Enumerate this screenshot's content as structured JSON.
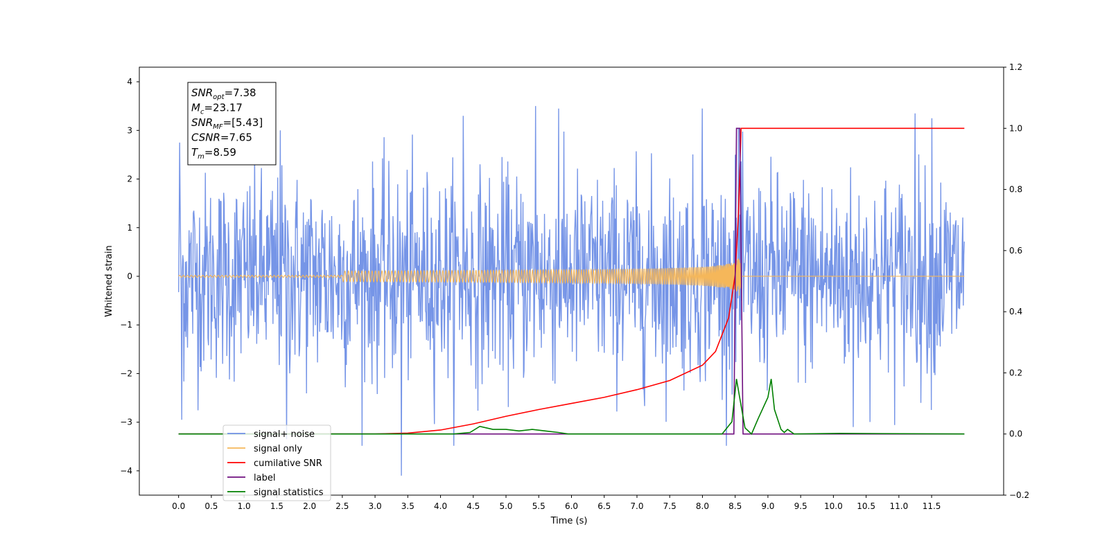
{
  "chart_data": {
    "type": "line",
    "xlabel": "Time (s)",
    "ylabel": "Whitened strain",
    "xlim": [
      -0.6,
      12.6
    ],
    "ylim": [
      -4.5,
      4.3
    ],
    "y2lim": [
      -0.2,
      1.2
    ],
    "x_ticks": [
      0.0,
      0.5,
      1.0,
      1.5,
      2.0,
      2.5,
      3.0,
      3.5,
      4.0,
      4.5,
      5.0,
      5.5,
      6.0,
      6.5,
      7.0,
      7.5,
      8.0,
      8.5,
      9.0,
      9.5,
      10.0,
      10.5,
      11.0,
      11.5
    ],
    "x_tick_labels": [
      "0.0",
      "0.5",
      "1.0",
      "1.5",
      "2.0",
      "2.5",
      "3.0",
      "3.5",
      "4.0",
      "4.5",
      "5.0",
      "5.5",
      "6.0",
      "6.5",
      "7.0",
      "7.5",
      "8.0",
      "8.5",
      "9.0",
      "9.5",
      "10.0",
      "10.5",
      "11.0",
      "11.5"
    ],
    "y_ticks": [
      -4,
      -3,
      -2,
      -1,
      0,
      1,
      2,
      3,
      4
    ],
    "y_tick_labels": [
      "−4",
      "−3",
      "−2",
      "−1",
      "0",
      "1",
      "2",
      "3",
      "4"
    ],
    "y2_ticks": [
      -0.2,
      0.0,
      0.2,
      0.4,
      0.6,
      0.8,
      1.0,
      1.2
    ],
    "y2_tick_labels": [
      "−0.2",
      "0.0",
      "0.2",
      "0.4",
      "0.6",
      "0.8",
      "1.0",
      "1.2"
    ],
    "grid": false,
    "legend_position": "bottom-left",
    "annotation": {
      "lines": [
        {
          "sym": "SNR",
          "sub": "opt",
          "val": "=7.38"
        },
        {
          "sym": "M",
          "sub": "c",
          "val": "=23.17"
        },
        {
          "sym": "SNR",
          "sub": "MF",
          "val": "=[5.43]"
        },
        {
          "sym": "CSNR",
          "sub": "",
          "val": "=7.65"
        },
        {
          "sym": "T",
          "sub": "m",
          "val": "=8.59"
        }
      ]
    },
    "series": [
      {
        "name": "signal+ noise",
        "axis": "left",
        "color": "#6f8fe6",
        "kind": "noise",
        "t_start": 0.0,
        "t_end": 12.0,
        "samples": 1500,
        "envelope_std": 1.05,
        "peak_max": 3.5,
        "peak_min": -4.1,
        "notable_spikes": [
          [
            0.02,
            2.75
          ],
          [
            0.05,
            -2.95
          ],
          [
            1.55,
            3.0
          ],
          [
            1.65,
            -3.35
          ],
          [
            3.4,
            -4.1
          ],
          [
            4.35,
            3.3
          ],
          [
            5.45,
            3.5
          ],
          [
            5.8,
            3.45
          ],
          [
            8.0,
            3.45
          ],
          [
            8.55,
            3.05
          ],
          [
            10.3,
            -3.1
          ],
          [
            11.25,
            3.35
          ],
          [
            11.5,
            3.25
          ]
        ]
      },
      {
        "name": "signal only",
        "axis": "left",
        "color": "#f5b75a",
        "kind": "chirp",
        "t_start": 0.0,
        "t_end": 12.0,
        "merger_time": 8.59,
        "amplitude_at_merger": 0.55
      },
      {
        "name": "cumilative SNR",
        "axis": "right",
        "color": "#ff0000",
        "x": [
          0.0,
          2.5,
          3.0,
          3.5,
          4.0,
          4.5,
          5.0,
          5.5,
          6.0,
          6.5,
          7.0,
          7.5,
          8.0,
          8.2,
          8.4,
          8.5,
          8.55,
          8.59,
          8.6,
          12.0
        ],
        "y": [
          0.0,
          0.0,
          0.0,
          0.003,
          0.013,
          0.033,
          0.058,
          0.08,
          0.1,
          0.12,
          0.145,
          0.175,
          0.225,
          0.27,
          0.38,
          0.52,
          0.72,
          1.0,
          1.0,
          1.0
        ]
      },
      {
        "name": "label",
        "axis": "right",
        "color": "#6f0f7f",
        "x": [
          0.0,
          8.48,
          8.52,
          8.57,
          8.62,
          12.0
        ],
        "y": [
          0.0,
          0.0,
          1.0,
          1.0,
          0.0,
          0.0
        ]
      },
      {
        "name": "signal statistics",
        "axis": "right",
        "color": "#008000",
        "x": [
          0.0,
          4.2,
          4.45,
          4.6,
          4.8,
          5.0,
          5.2,
          5.4,
          5.6,
          5.8,
          5.95,
          8.3,
          8.45,
          8.52,
          8.56,
          8.65,
          8.75,
          8.85,
          9.0,
          9.05,
          9.1,
          9.2,
          9.25,
          9.3,
          9.4,
          10.1,
          12.0
        ],
        "y": [
          0.0,
          0.0,
          0.005,
          0.025,
          0.015,
          0.015,
          0.01,
          0.015,
          0.01,
          0.005,
          0.0,
          0.0,
          0.04,
          0.18,
          0.13,
          0.02,
          0.0,
          0.05,
          0.12,
          0.18,
          0.08,
          0.015,
          0.005,
          0.015,
          0.0,
          0.002,
          0.0
        ]
      }
    ],
    "legend_entries": [
      {
        "label": "signal+ noise",
        "color": "#6f8fe6"
      },
      {
        "label": "signal only",
        "color": "#f5b75a"
      },
      {
        "label": "cumilative SNR",
        "color": "#ff0000"
      },
      {
        "label": "label",
        "color": "#6f0f7f"
      },
      {
        "label": "signal statistics",
        "color": "#008000"
      }
    ]
  }
}
